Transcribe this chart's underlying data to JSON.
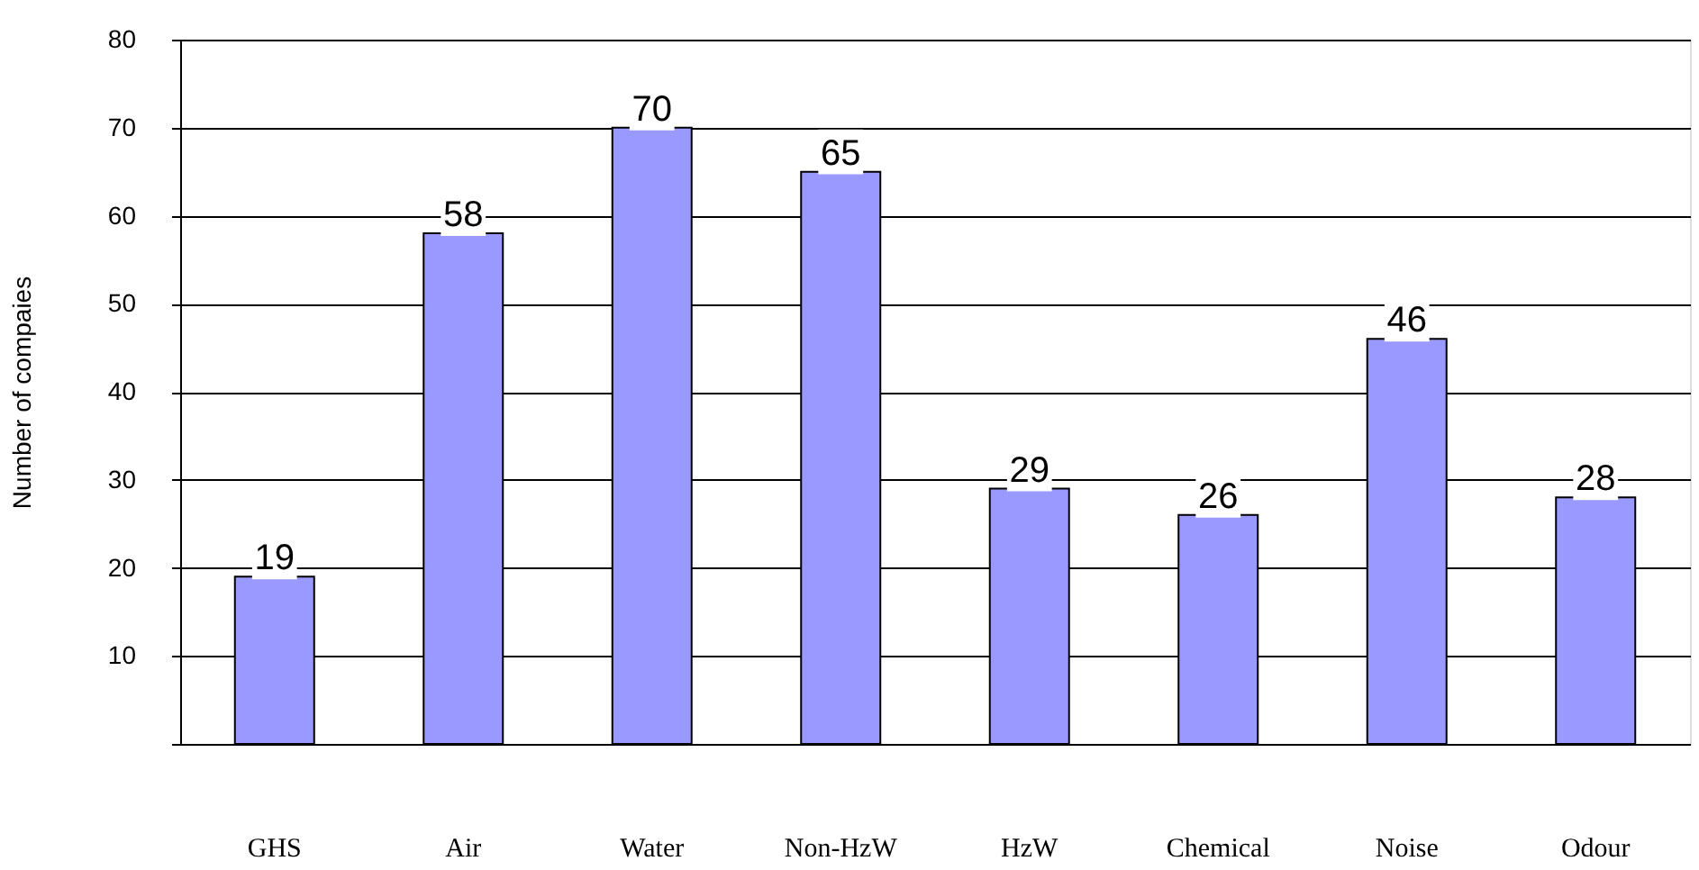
{
  "chart_data": {
    "type": "bar",
    "ylabel": "Number of compaies",
    "categories": [
      "GHS",
      "Air",
      "Water",
      "Non-HzW",
      "HzW",
      "Chemical",
      "Noise",
      "Odour"
    ],
    "values": [
      19,
      58,
      70,
      65,
      29,
      26,
      46,
      28
    ],
    "color": "#9999ff",
    "ylim": [
      0,
      80
    ],
    "yticks": [
      {
        "value": 0,
        "label": null
      },
      10,
      20,
      30,
      40,
      50,
      60,
      70,
      80
    ],
    "grid": "y",
    "data_labels": true
  }
}
